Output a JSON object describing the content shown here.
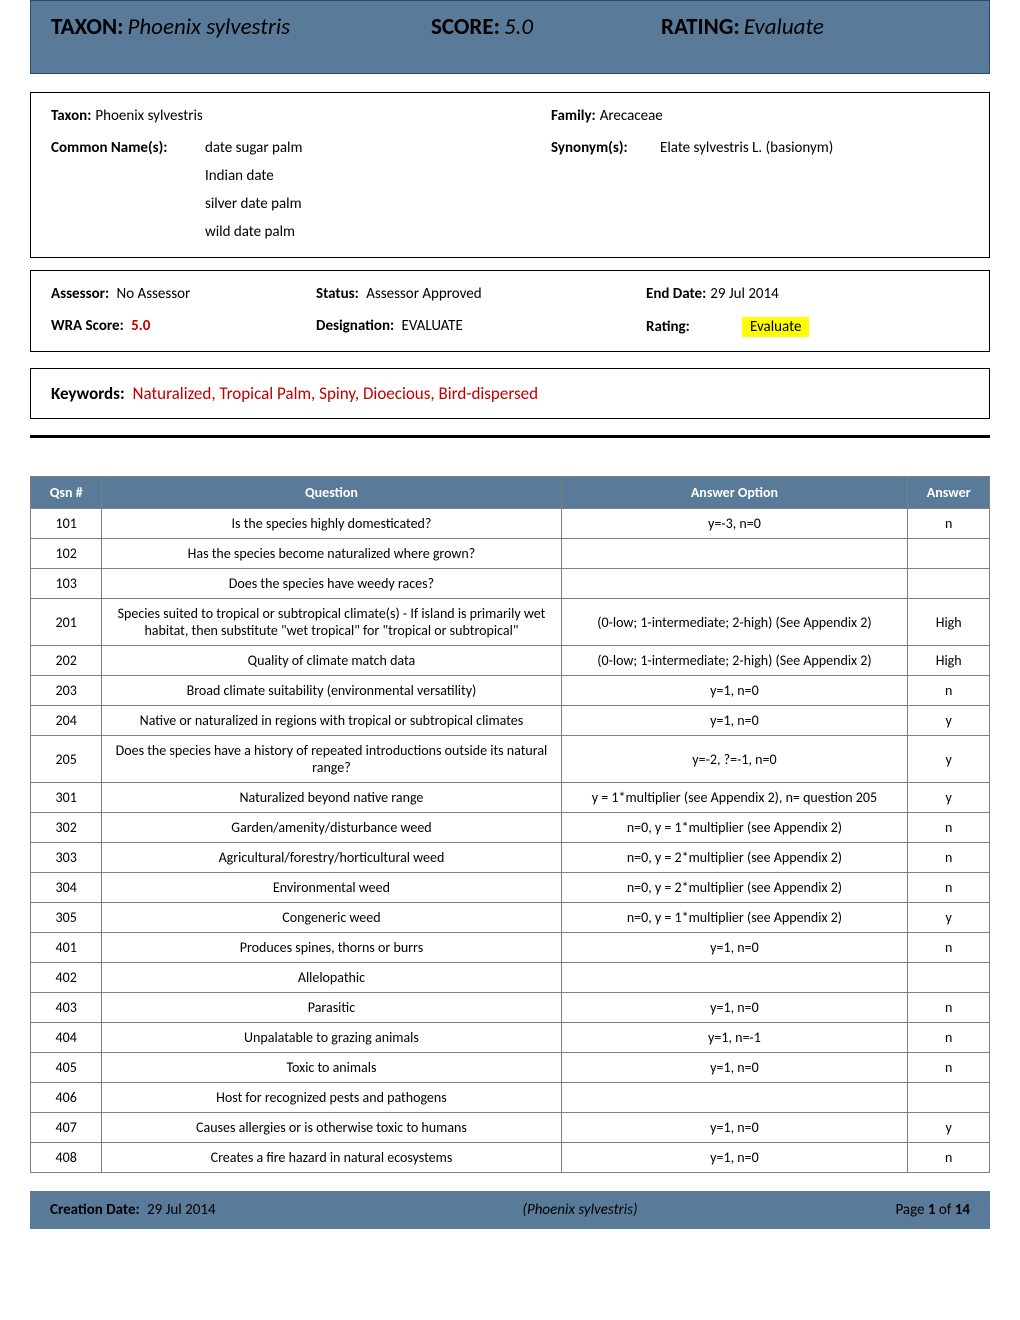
{
  "colors": {
    "banner_bg": "#5a7a9a",
    "banner_border": "#2a4a6a",
    "red": "#c00000",
    "highlight": "#ffff00",
    "table_border": "#7f7f7f",
    "th_text": "#ffffff"
  },
  "banner": {
    "taxon_label": "TAXON:",
    "taxon_value": "Phoenix sylvestris",
    "score_label": "SCORE:",
    "score_value": "5.0",
    "rating_label": "RATING:",
    "rating_value": "Evaluate"
  },
  "info": {
    "taxon_label": "Taxon:",
    "taxon_value": "Phoenix sylvestris",
    "family_label": "Family:",
    "family_value": "Arecaceae",
    "common_label": "Common Name(s):",
    "common_names": [
      "date sugar palm",
      "Indian date",
      "silver date palm",
      "wild date palm"
    ],
    "synonym_label": "Synonym(s):",
    "synonym_value": "Elate sylvestris L. (basionym)"
  },
  "status": {
    "assessor_label": "Assessor:",
    "assessor_value": "No Assessor",
    "status_label": "Status:",
    "status_value": "Assessor Approved",
    "enddate_label": "End Date:",
    "enddate_value": "29 Jul 2014",
    "wra_label": "WRA Score:",
    "wra_value": "5.0",
    "designation_label": "Designation:",
    "designation_value": "EVALUATE",
    "rating_label": "Rating:",
    "rating_value": "Evaluate"
  },
  "keywords": {
    "label": "Keywords:",
    "value": "Naturalized, Tropical Palm, Spiny, Dioecious, Bird-dispersed"
  },
  "table": {
    "headers": {
      "qsn": "Qsn #",
      "question": "Question",
      "option": "Answer Option",
      "answer": "Answer"
    },
    "rows": [
      {
        "qsn": "101",
        "q": "Is the species highly domesticated?",
        "opt": "y=-3, n=0",
        "ans": "n"
      },
      {
        "qsn": "102",
        "q": "Has the species become naturalized where grown?",
        "opt": "",
        "ans": ""
      },
      {
        "qsn": "103",
        "q": "Does the species have weedy races?",
        "opt": "",
        "ans": ""
      },
      {
        "qsn": "201",
        "q": "Species suited to tropical or subtropical climate(s) - If island is primarily wet habitat, then substitute \"wet tropical\" for \"tropical or subtropical\"",
        "opt": "(0-low; 1-intermediate; 2-high)  (See Appendix 2)",
        "ans": "High"
      },
      {
        "qsn": "202",
        "q": "Quality of climate match data",
        "opt": "(0-low; 1-intermediate; 2-high)  (See Appendix 2)",
        "ans": "High"
      },
      {
        "qsn": "203",
        "q": "Broad climate suitability (environmental versatility)",
        "opt": "y=1, n=0",
        "ans": "n"
      },
      {
        "qsn": "204",
        "q": "Native or naturalized in regions with tropical or subtropical climates",
        "opt": "y=1, n=0",
        "ans": "y"
      },
      {
        "qsn": "205",
        "q": "Does the species have a history of repeated introductions outside its natural range?",
        "opt": "y=-2, ?=-1, n=0",
        "ans": "y"
      },
      {
        "qsn": "301",
        "q": "Naturalized beyond native range",
        "opt": "y = 1*multiplier (see Appendix 2), n= question 205",
        "ans": "y"
      },
      {
        "qsn": "302",
        "q": "Garden/amenity/disturbance weed",
        "opt": "n=0, y = 1*multiplier (see Appendix 2)",
        "ans": "n"
      },
      {
        "qsn": "303",
        "q": "Agricultural/forestry/horticultural weed",
        "opt": "n=0, y = 2*multiplier (see Appendix 2)",
        "ans": "n"
      },
      {
        "qsn": "304",
        "q": "Environmental weed",
        "opt": "n=0, y = 2*multiplier (see Appendix 2)",
        "ans": "n"
      },
      {
        "qsn": "305",
        "q": "Congeneric weed",
        "opt": "n=0, y = 1*multiplier (see Appendix 2)",
        "ans": "y"
      },
      {
        "qsn": "401",
        "q": "Produces spines, thorns or burrs",
        "opt": "y=1, n=0",
        "ans": "n"
      },
      {
        "qsn": "402",
        "q": "Allelopathic",
        "opt": "",
        "ans": ""
      },
      {
        "qsn": "403",
        "q": "Parasitic",
        "opt": "y=1, n=0",
        "ans": "n"
      },
      {
        "qsn": "404",
        "q": "Unpalatable to grazing animals",
        "opt": "y=1, n=-1",
        "ans": "n"
      },
      {
        "qsn": "405",
        "q": "Toxic to animals",
        "opt": "y=1, n=0",
        "ans": "n"
      },
      {
        "qsn": "406",
        "q": "Host for recognized pests and pathogens",
        "opt": "",
        "ans": ""
      },
      {
        "qsn": "407",
        "q": "Causes allergies or is otherwise toxic to humans",
        "opt": "y=1, n=0",
        "ans": "y"
      },
      {
        "qsn": "408",
        "q": "Creates a fire hazard in natural ecosystems",
        "opt": "y=1, n=0",
        "ans": "n"
      }
    ]
  },
  "footer": {
    "creation_label": "Creation Date:",
    "creation_value": "29 Jul 2014",
    "species": "(Phoenix sylvestris)",
    "page_prefix": "Page ",
    "page_num": "1",
    "page_of": " of ",
    "page_total": "14"
  }
}
